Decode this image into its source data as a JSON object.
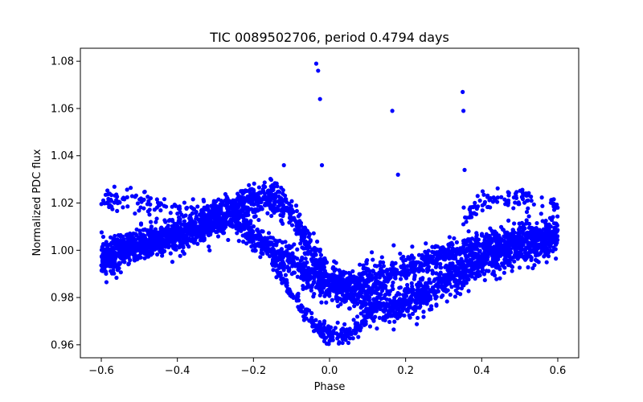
{
  "chart_data": {
    "type": "scatter",
    "title": "TIC 0089502706, period 0.4794 days",
    "xlabel": "Phase",
    "ylabel": "Normalized PDC flux",
    "xlim": [
      -0.655,
      0.655
    ],
    "ylim": [
      0.9545,
      1.0855
    ],
    "xticks": [
      -0.6,
      -0.4,
      -0.2,
      0.0,
      0.2,
      0.4,
      0.6
    ],
    "xtick_labels": [
      "−0.6",
      "−0.4",
      "−0.2",
      "0.0",
      "0.2",
      "0.4",
      "0.6"
    ],
    "yticks": [
      0.96,
      0.98,
      1.0,
      1.02,
      1.04,
      1.06,
      1.08
    ],
    "ytick_labels": [
      "0.96",
      "0.98",
      "1.00",
      "1.02",
      "1.04",
      "1.06",
      "1.08"
    ],
    "grid": false,
    "marker_color": "#0000ff",
    "x_range": [
      -0.6,
      0.6
    ],
    "branches": [
      {
        "comment": "primary light curve (deep dip)",
        "x": [
          -0.6,
          -0.5,
          -0.4,
          -0.3,
          -0.2,
          -0.15,
          -0.1,
          -0.05,
          0.0,
          0.05,
          0.1,
          0.15,
          0.2,
          0.3,
          0.4,
          0.5,
          0.6
        ],
        "y": [
          0.998,
          1.003,
          1.008,
          1.014,
          1.021,
          1.022,
          1.015,
          1.0,
          0.988,
          0.982,
          0.978,
          0.976,
          0.978,
          0.986,
          0.995,
          1.0,
          1.004
        ]
      },
      {
        "comment": "second track",
        "x": [
          -0.6,
          -0.5,
          -0.4,
          -0.3,
          -0.25,
          -0.2,
          -0.1,
          -0.05,
          0.0,
          0.05,
          0.1,
          0.15,
          0.2,
          0.3,
          0.4,
          0.5,
          0.6
        ],
        "y": [
          0.995,
          1.001,
          1.005,
          1.011,
          1.013,
          1.005,
          0.995,
          0.988,
          0.985,
          0.985,
          0.988,
          0.99,
          0.992,
          0.998,
          1.003,
          1.006,
          1.008
        ]
      },
      {
        "comment": "deep eclipse track",
        "x": [
          -0.15,
          -0.1,
          -0.07,
          -0.04,
          0.0,
          0.04,
          0.08,
          0.12
        ],
        "y": [
          0.995,
          0.982,
          0.975,
          0.968,
          0.964,
          0.964,
          0.968,
          0.976
        ]
      },
      {
        "comment": "upper band",
        "x": [
          -0.6,
          -0.5,
          -0.4,
          -0.3,
          0.35,
          0.4,
          0.5,
          0.6
        ],
        "y": [
          1.021,
          1.02,
          1.018,
          1.016,
          1.012,
          1.02,
          1.022,
          1.02
        ]
      }
    ],
    "outliers": [
      {
        "x": -0.035,
        "y": 1.079
      },
      {
        "x": -0.03,
        "y": 1.076
      },
      {
        "x": -0.025,
        "y": 1.064
      },
      {
        "x": -0.02,
        "y": 1.036
      },
      {
        "x": 0.165,
        "y": 1.059
      },
      {
        "x": 0.18,
        "y": 1.032
      },
      {
        "x": 0.35,
        "y": 1.067
      },
      {
        "x": 0.352,
        "y": 1.059
      },
      {
        "x": 0.355,
        "y": 1.034
      },
      {
        "x": -0.12,
        "y": 1.036
      }
    ]
  }
}
